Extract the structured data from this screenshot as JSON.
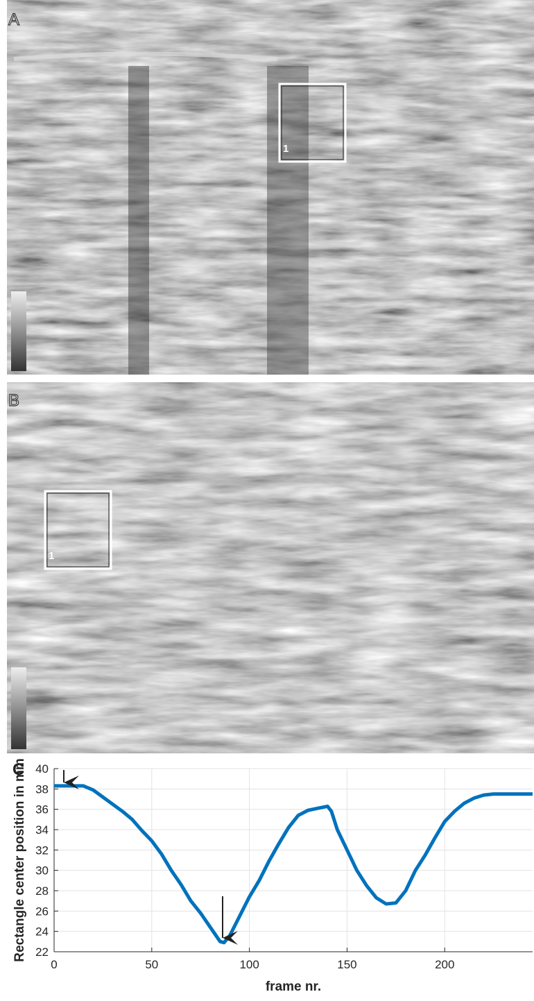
{
  "panels": [
    {
      "label": "A",
      "region_label": "1"
    },
    {
      "label": "B",
      "region_label": "1"
    },
    {
      "label": "C"
    }
  ],
  "chart_data": {
    "type": "line",
    "xlabel": "frame nr.",
    "ylabel": "Rectangle center position in mm",
    "x": [
      0,
      5,
      10,
      15,
      20,
      25,
      30,
      35,
      40,
      45,
      50,
      55,
      60,
      65,
      70,
      75,
      80,
      85,
      87,
      90,
      95,
      100,
      105,
      110,
      115,
      120,
      125,
      130,
      135,
      140,
      142,
      145,
      150,
      155,
      160,
      165,
      170,
      175,
      180,
      185,
      190,
      195,
      200,
      205,
      210,
      215,
      220,
      225,
      230,
      235,
      240,
      245
    ],
    "series": [
      {
        "color": "#0072bd",
        "values": [
          38.3,
          38.3,
          38.3,
          38.3,
          37.9,
          37.2,
          36.5,
          35.8,
          35.0,
          33.9,
          32.9,
          31.6,
          30.0,
          28.6,
          27.0,
          25.8,
          24.4,
          23.0,
          22.9,
          23.6,
          25.5,
          27.4,
          29.0,
          30.9,
          32.6,
          34.2,
          35.4,
          35.9,
          36.1,
          36.3,
          35.8,
          34.0,
          32.0,
          30.0,
          28.5,
          27.3,
          26.7,
          26.8,
          28.0,
          30.0,
          31.5,
          33.2,
          34.8,
          35.8,
          36.6,
          37.1,
          37.4,
          37.5,
          37.5,
          37.5,
          37.5,
          37.5
        ]
      }
    ],
    "xlim": [
      0,
      245
    ],
    "xticks": [
      0,
      50,
      100,
      150,
      200
    ],
    "ylim": [
      22,
      40
    ],
    "yticks": [
      22,
      24,
      26,
      28,
      30,
      32,
      34,
      36,
      38,
      40
    ],
    "grid": true
  }
}
